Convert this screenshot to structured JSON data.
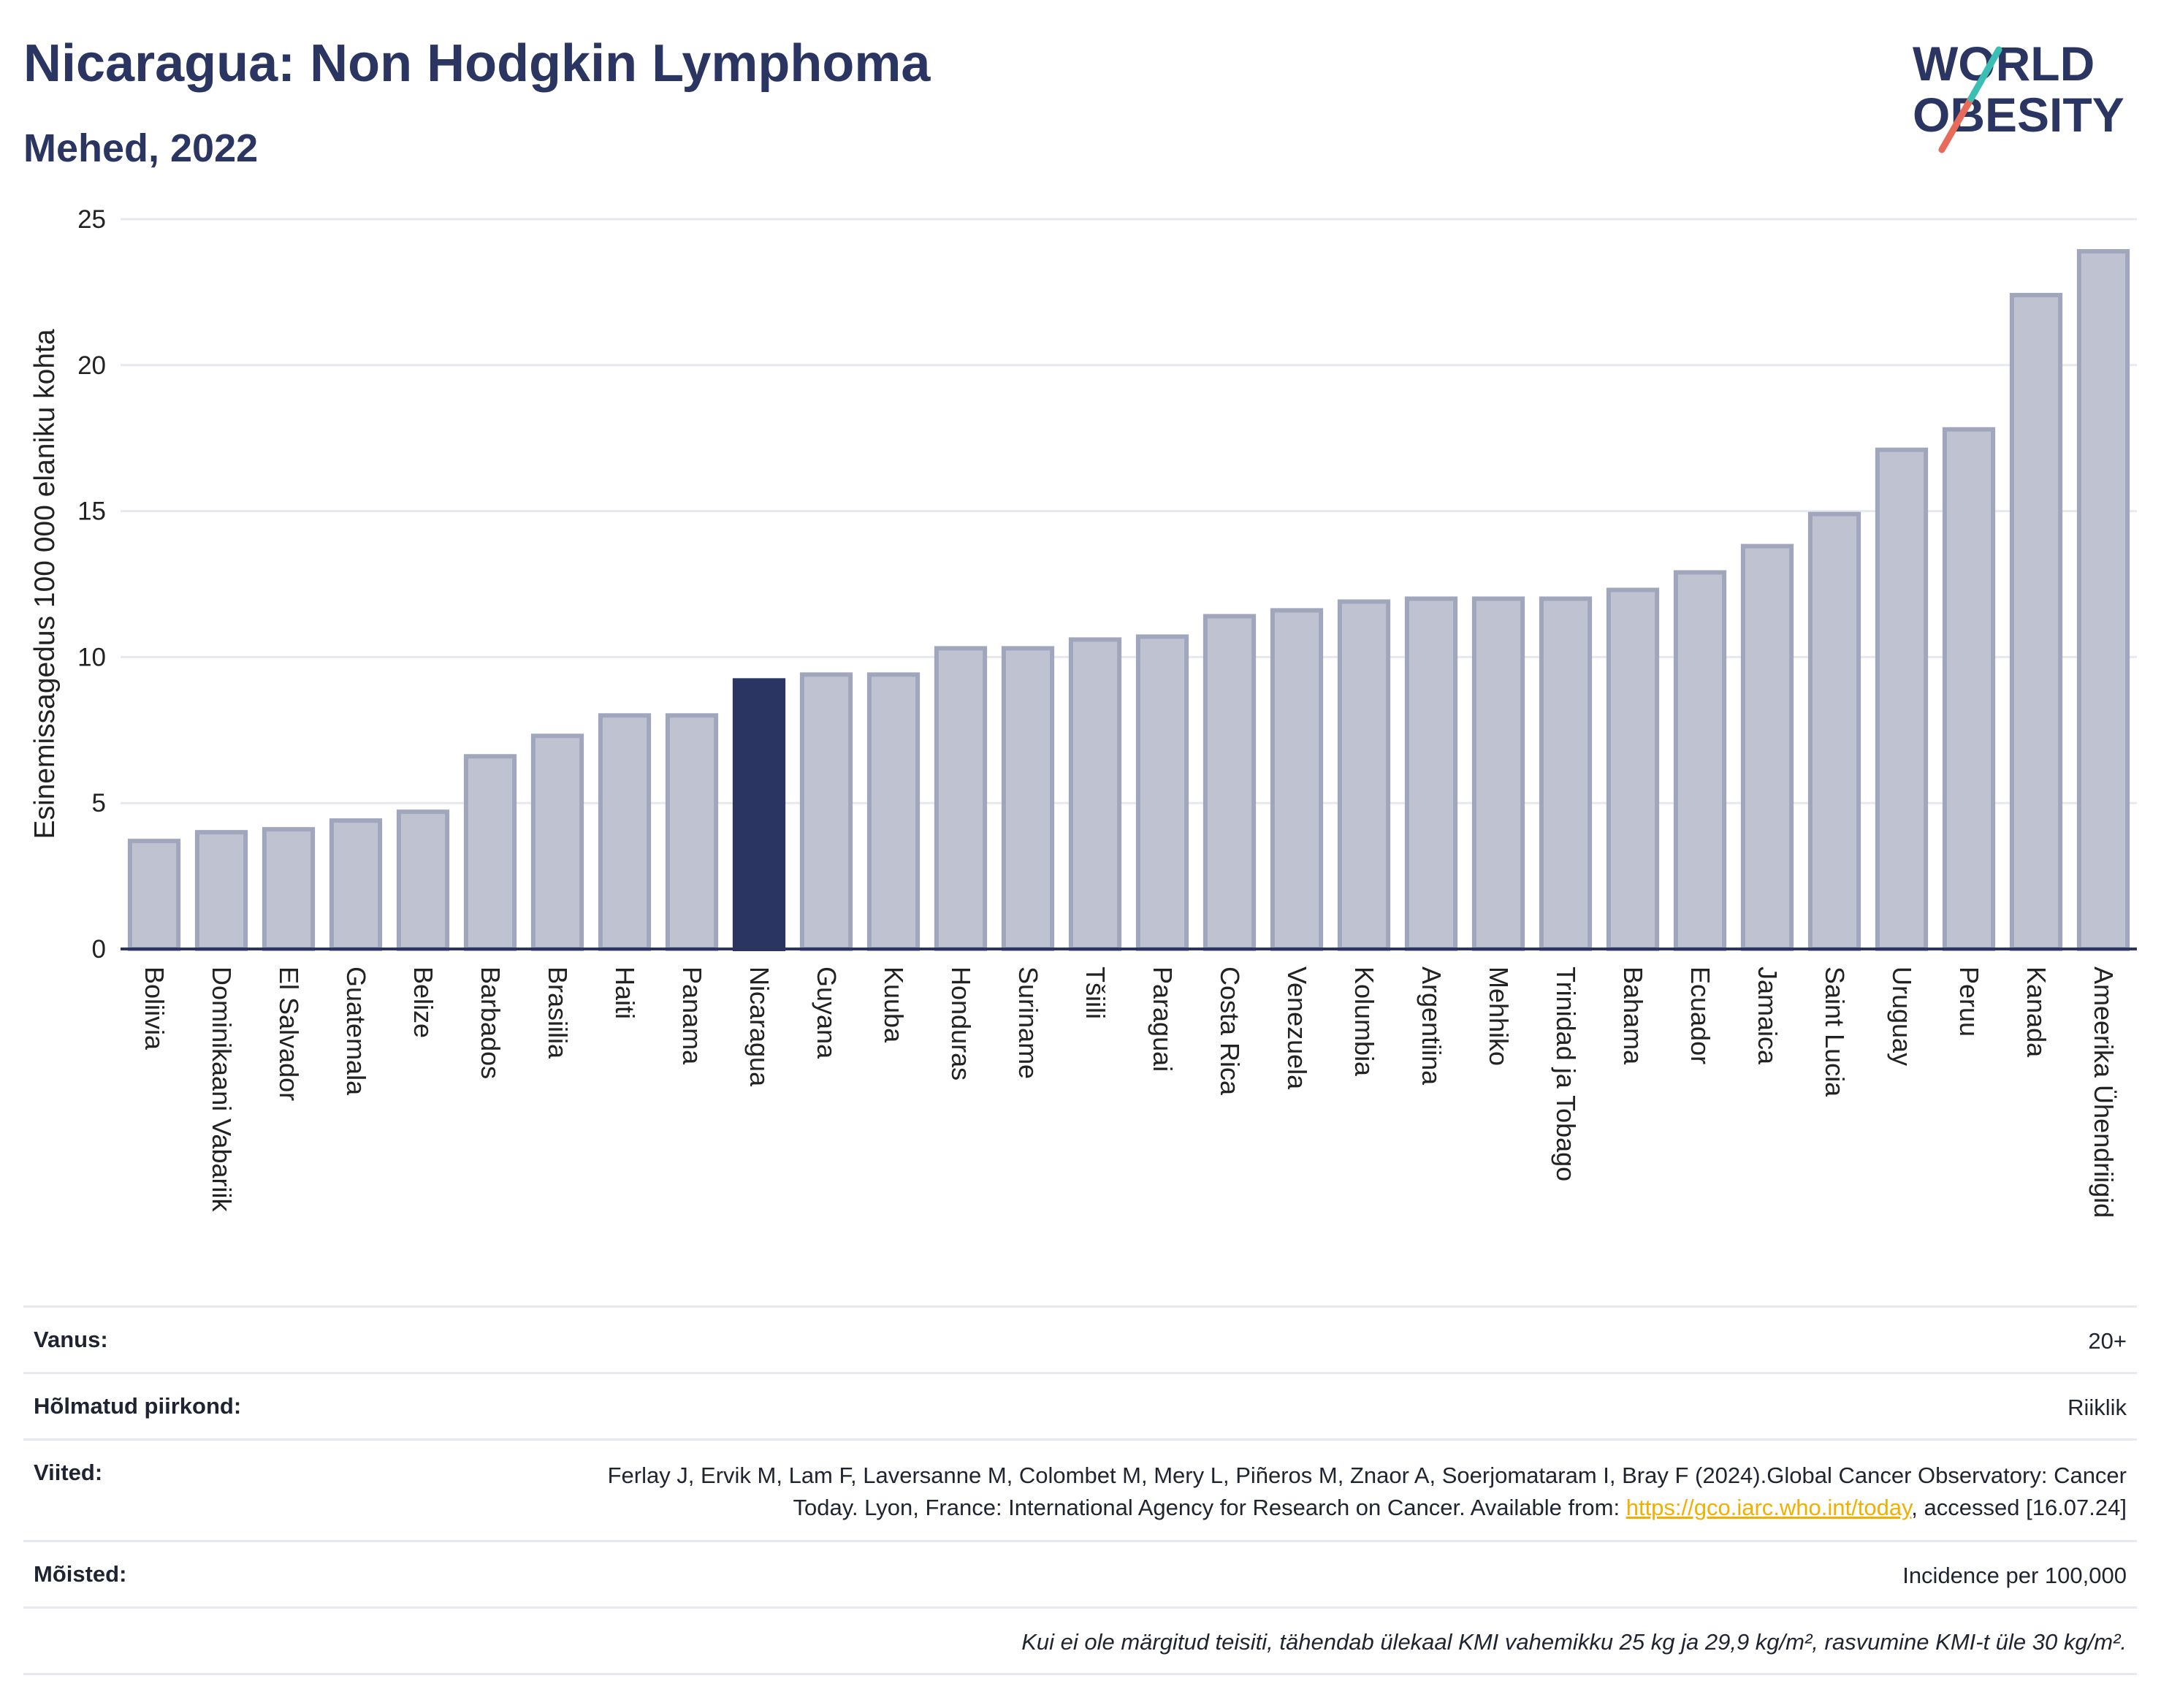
{
  "title": "Nicaragua: Non Hodgkin Lymphoma",
  "subtitle": "Mehed, 2022",
  "logo": {
    "line1": "WORLD",
    "line2": "OBESITY"
  },
  "colors": {
    "bar": "#bfc3d1",
    "bar_border": "#a0a6bb",
    "highlight": "#2b3562",
    "title": "#2b3562",
    "link": "#f0b000"
  },
  "chart_data": {
    "type": "bar",
    "ylabel": "Esinemissagedus 100 000 elaniku kohta",
    "xlabel": "",
    "ylim": [
      0,
      25
    ],
    "yticks": [
      0,
      5,
      10,
      15,
      20,
      25
    ],
    "grid": true,
    "highlight": "Nicaragua",
    "categories": [
      "Boliivia",
      "Dominikaani Vabariik",
      "El Salvador",
      "Guatemala",
      "Belize",
      "Barbados",
      "Brasiilia",
      "Haiti",
      "Panama",
      "Nicaragua",
      "Guyana",
      "Kuuba",
      "Honduras",
      "Suriname",
      "Tšiili",
      "Paraguai",
      "Costa Rica",
      "Venezuela",
      "Kolumbia",
      "Argentiina",
      "Mehhiko",
      "Trinidad ja Tobago",
      "Bahama",
      "Ecuador",
      "Jamaica",
      "Saint Lucia",
      "Uruguay",
      "Peruu",
      "Kanada",
      "Ameerika Ühendriigid"
    ],
    "values": [
      3.7,
      4.0,
      4.1,
      4.4,
      4.7,
      6.6,
      7.3,
      8.0,
      8.0,
      9.2,
      9.4,
      9.4,
      10.3,
      10.3,
      10.6,
      10.7,
      11.4,
      11.6,
      11.9,
      12.0,
      12.0,
      12.0,
      12.3,
      12.9,
      13.8,
      14.9,
      17.1,
      17.8,
      22.4,
      23.9
    ]
  },
  "meta": [
    {
      "label": "Vanus:",
      "value": "20+"
    },
    {
      "label": "Hõlmatud piirkond:",
      "value": "Riiklik"
    },
    {
      "label": "Viited:",
      "value_before": "Ferlay J, Ervik M, Lam F, Laversanne M, Colombet M, Mery L, Piñeros M, Znaor A, Soerjomataram I, Bray F (2024).Global Cancer Observatory: Cancer Today. Lyon, France: International Agency for Research on Cancer. Available from: ",
      "link": "https://gco.iarc.who.int/today",
      "value_after": ", accessed [16.07.24]"
    },
    {
      "label": "Mõisted:",
      "value": "Incidence per 100,000"
    },
    {
      "label": "",
      "value": "Kui ei ole märgitud teisiti, tähendab ülekaal KMI vahemikku 25 kg ja 29,9 kg/m², rasvumine KMI-t üle 30 kg/m²."
    }
  ]
}
